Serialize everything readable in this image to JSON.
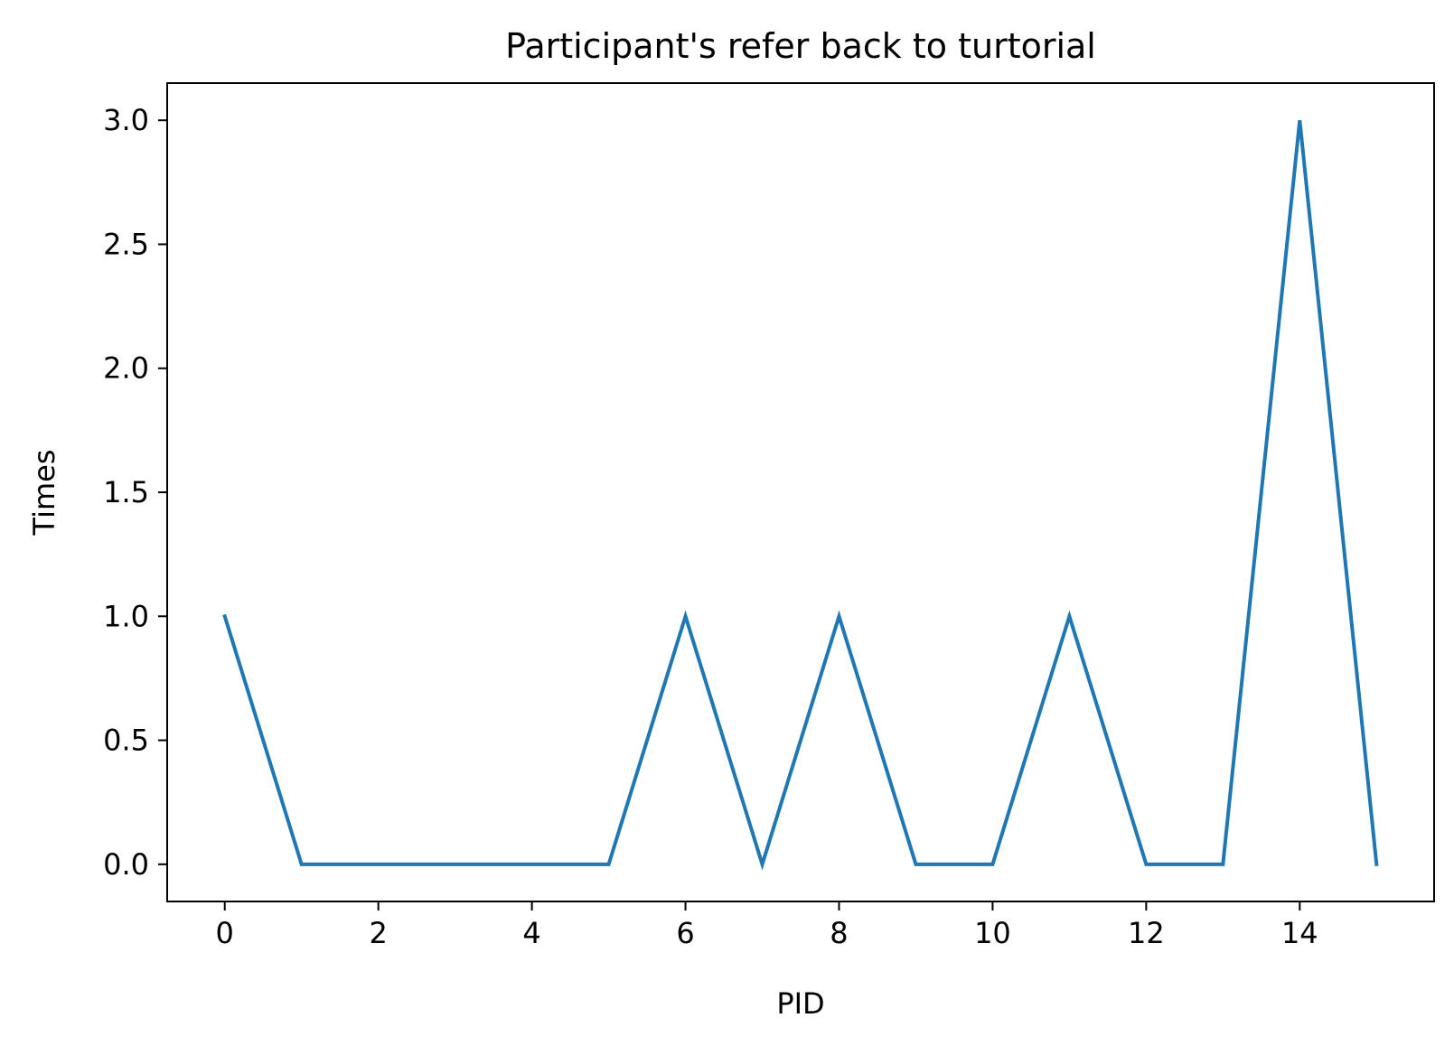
{
  "chart_data": {
    "type": "line",
    "title": "Participant's refer back to turtorial",
    "xlabel": "PID",
    "ylabel": "Times",
    "x": [
      0,
      1,
      2,
      3,
      4,
      5,
      6,
      7,
      8,
      9,
      10,
      11,
      12,
      13,
      14,
      15
    ],
    "series": [
      {
        "values": [
          1,
          0,
          0,
          0,
          0,
          0,
          1,
          0,
          1,
          0,
          0,
          1,
          0,
          0,
          3,
          0
        ]
      }
    ],
    "xlim": [
      -0.75,
      15.75
    ],
    "ylim": [
      -0.15,
      3.15
    ],
    "xticks": [
      0,
      2,
      4,
      6,
      8,
      10,
      12,
      14
    ],
    "xtick_labels": [
      "0",
      "2",
      "4",
      "6",
      "8",
      "10",
      "12",
      "14"
    ],
    "yticks": [
      0,
      0.5,
      1,
      1.5,
      2,
      2.5,
      3
    ],
    "ytick_labels": [
      "0.0",
      "0.5",
      "1.0",
      "1.5",
      "2.0",
      "2.5",
      "3.0"
    ],
    "grid": false,
    "line_color": "#1f77b4"
  }
}
